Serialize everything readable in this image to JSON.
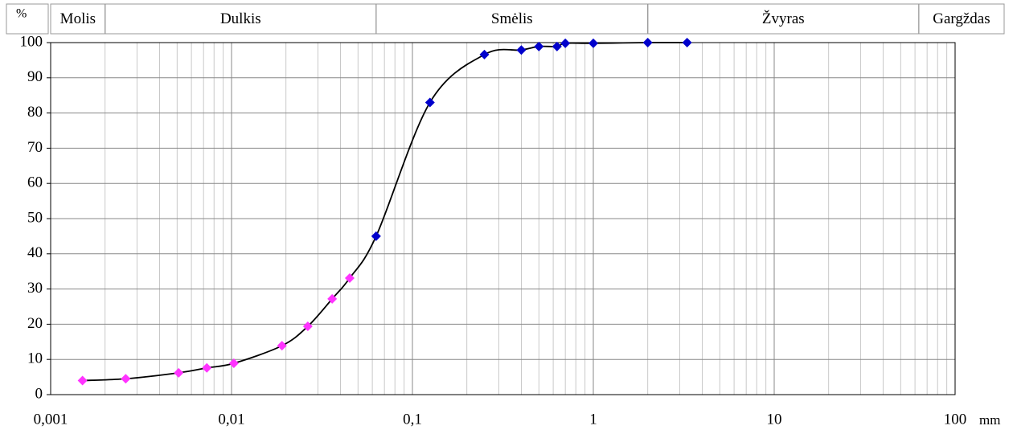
{
  "chart_data": {
    "type": "scatter",
    "y_axis_label": "%",
    "x_axis_label": "mm",
    "log_x": true,
    "grid": true,
    "minor_grid": true,
    "curve": true,
    "curve_color": "#000000",
    "xlim": [
      0.001,
      100
    ],
    "ylim": [
      0,
      100
    ],
    "xticks": [
      {
        "value": 0.001,
        "label": "0,001"
      },
      {
        "value": 0.01,
        "label": "0,01"
      },
      {
        "value": 0.1,
        "label": "0,1"
      },
      1,
      10,
      100
    ],
    "yticks": [
      0,
      10,
      20,
      30,
      40,
      50,
      60,
      70,
      80,
      90,
      100
    ],
    "bands": [
      "Molis",
      "Dulkis",
      "Smėlis",
      "Žvyras",
      "Gargždas"
    ],
    "band_boundaries": [
      0.002,
      0.063,
      2,
      63
    ],
    "series": [
      {
        "color": "#ff33ff",
        "x": [
          0.0015,
          0.0026,
          0.0051,
          0.0073,
          0.0103,
          0.019,
          0.0264,
          0.036,
          0.045
        ],
        "values": [
          4,
          4.5,
          6.2,
          7.6,
          8.9,
          13.9,
          19.4,
          27.2,
          33.1
        ]
      },
      {
        "color": "#0000cc",
        "x": [
          0.063,
          0.125,
          0.25,
          0.4,
          0.5,
          0.63,
          0.7,
          1,
          2,
          3.3
        ],
        "values": [
          45,
          83,
          96.6,
          97.9,
          98.9,
          98.9,
          99.8,
          99.8,
          100,
          100
        ]
      }
    ]
  }
}
